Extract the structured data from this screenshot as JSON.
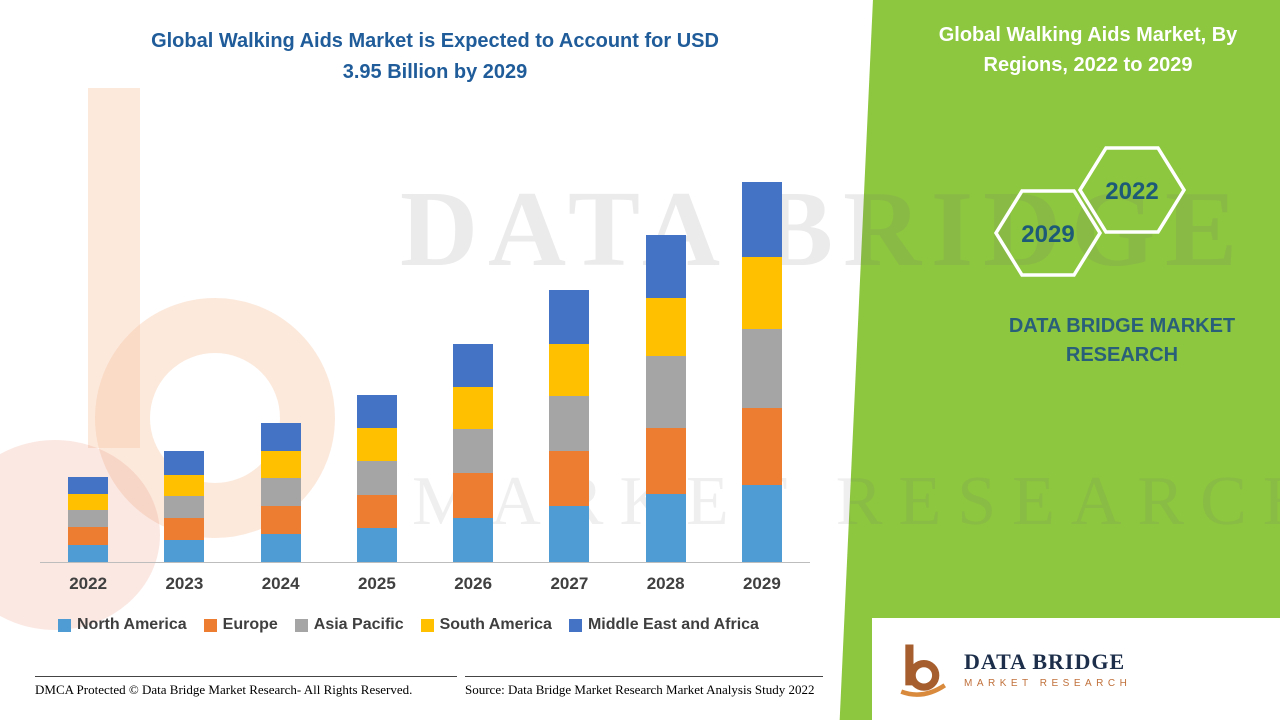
{
  "title": {
    "line1": "Global Walking Aids Market is Expected to Account for USD",
    "line2": "3.95 Billion by 2029"
  },
  "side_panel": {
    "heading": "Global Walking Aids Market, By Regions, 2022 to 2029",
    "hexagons": [
      "2029",
      "2022"
    ],
    "brand_text": "DATA BRIDGE MARKET RESEARCH",
    "bg_color": "#8dc63f"
  },
  "watermark": {
    "line1": "DATA BRIDGE",
    "line2": "MARKET RESEARCH"
  },
  "chart_data": {
    "type": "bar",
    "stacked": true,
    "title": "Global Walking Aids Market, By Regions, 2022 to 2029",
    "xlabel": "",
    "ylabel": "",
    "unit": "USD Billion",
    "ylim": [
      0,
      3.95
    ],
    "grid": false,
    "legend_position": "bottom",
    "categories": [
      "2022",
      "2023",
      "2024",
      "2025",
      "2026",
      "2027",
      "2028",
      "2029"
    ],
    "totals": [
      0.88,
      1.15,
      1.45,
      1.74,
      2.27,
      2.83,
      3.4,
      3.95
    ],
    "series": [
      {
        "name": "North America",
        "color": "#4f9bd4",
        "values": [
          0.18,
          0.23,
          0.29,
          0.35,
          0.46,
          0.58,
          0.71,
          0.8
        ]
      },
      {
        "name": "Europe",
        "color": "#ed7d31",
        "values": [
          0.18,
          0.23,
          0.29,
          0.35,
          0.46,
          0.57,
          0.68,
          0.8
        ]
      },
      {
        "name": "Asia Pacific",
        "color": "#a5a5a5",
        "values": [
          0.18,
          0.23,
          0.29,
          0.35,
          0.46,
          0.58,
          0.75,
          0.82
        ]
      },
      {
        "name": "South America",
        "color": "#ffc000",
        "values": [
          0.17,
          0.22,
          0.28,
          0.34,
          0.44,
          0.54,
          0.6,
          0.75
        ]
      },
      {
        "name": "Middle East and Africa",
        "color": "#4472c4",
        "values": [
          0.17,
          0.24,
          0.3,
          0.35,
          0.45,
          0.56,
          0.66,
          0.78
        ]
      }
    ]
  },
  "footer": {
    "dmca": "DMCA Protected © Data Bridge Market Research- All Rights Reserved.",
    "source": "Source: Data Bridge Market Research Market Analysis Study 2022"
  },
  "logo": {
    "name": "DATA BRIDGE",
    "subtext": "MARKET RESEARCH"
  }
}
